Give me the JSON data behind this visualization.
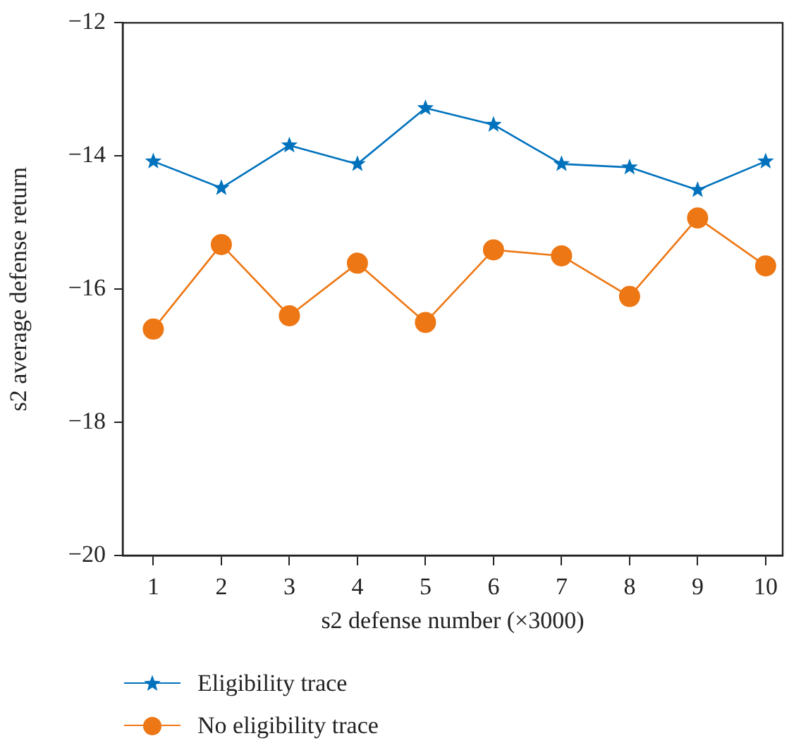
{
  "chart_data": {
    "type": "line",
    "xlabel": "s2 defense number (×3000)",
    "ylabel": "s2 average defense return",
    "x": [
      1,
      2,
      3,
      4,
      5,
      6,
      7,
      8,
      9,
      10
    ],
    "series": [
      {
        "name": "Eligibility trace",
        "color": "#0072bd",
        "marker": "star",
        "values": [
          -14.08,
          -14.48,
          -13.84,
          -14.12,
          -13.28,
          -13.53,
          -14.12,
          -14.17,
          -14.51,
          -14.08
        ]
      },
      {
        "name": "No eligibility trace",
        "color": "#ed7714",
        "marker": "circle",
        "values": [
          -16.6,
          -15.33,
          -16.4,
          -15.61,
          -16.5,
          -15.41,
          -15.5,
          -16.11,
          -14.93,
          -15.65
        ]
      }
    ],
    "xlim": [
      0.55,
      10.25
    ],
    "xticks": [
      1,
      2,
      3,
      4,
      5,
      6,
      7,
      8,
      9,
      10
    ],
    "ylim": [
      -20,
      -12
    ],
    "yticks": [
      -20,
      -18,
      -16,
      -14,
      -12
    ],
    "grid": false,
    "legend": "bottom",
    "line_style": "solid"
  }
}
